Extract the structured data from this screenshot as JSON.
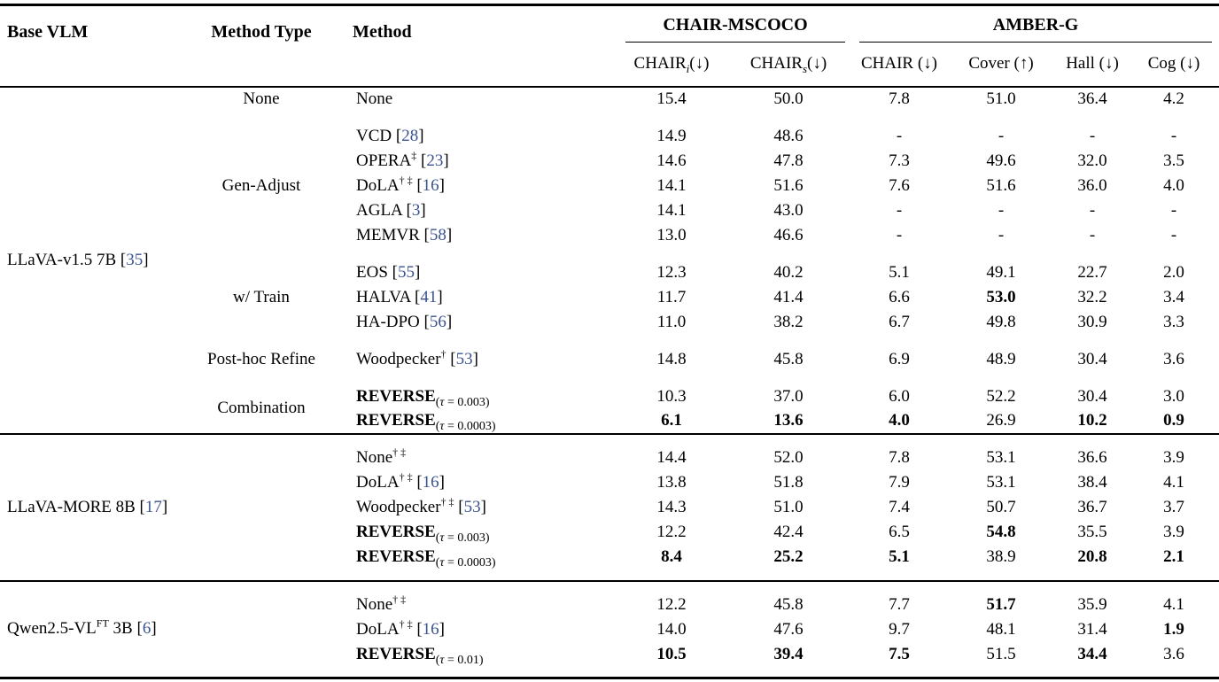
{
  "colors": {
    "citation": "#3A5390",
    "text": "#000000"
  },
  "symbols": {
    "tau": "τ",
    "dagger": "†",
    "ddagger": "‡"
  },
  "header": {
    "col1": "Base VLM",
    "col2": "Method Type",
    "col3": "Method",
    "groups": [
      {
        "label": "CHAIR-MSCOCO"
      },
      {
        "label": "AMBER-G"
      }
    ],
    "subcols": [
      {
        "base": "CHAIR",
        "sub": "i",
        "arrow": "(↓)"
      },
      {
        "base": "CHAIR",
        "sub": "s",
        "arrow": "(↓)"
      },
      {
        "base": "CHAIR",
        "sub": "",
        "arrow": "(↓)"
      },
      {
        "base": "Cover",
        "sub": "",
        "arrow": "(↑)"
      },
      {
        "base": "Hall",
        "sub": "",
        "arrow": "(↓)"
      },
      {
        "base": "Cog",
        "sub": "",
        "arrow": "(↓)"
      }
    ]
  },
  "sections": [
    {
      "padded": false,
      "base": {
        "pre": "LLaVA-v1.5 7B",
        "sup": "",
        "post": "",
        "cite": "35"
      },
      "groups": [
        {
          "label": "None",
          "rows": [
            {
              "method": {
                "name": "None",
                "sups": [],
                "cite": "",
                "tau": "",
                "bold": false
              },
              "values": [
                "15.4",
                "50.0",
                "7.8",
                "51.0",
                "36.4",
                "4.2"
              ],
              "bold": [
                false,
                false,
                false,
                false,
                false,
                false
              ]
            }
          ]
        },
        {
          "label": "Gen-Adjust",
          "rows": [
            {
              "method": {
                "name": "VCD",
                "sups": [],
                "cite": "28",
                "tau": "",
                "bold": false
              },
              "values": [
                "14.9",
                "48.6",
                "-",
                "-",
                "-",
                "-"
              ],
              "bold": [
                false,
                false,
                false,
                false,
                false,
                false
              ]
            },
            {
              "method": {
                "name": "OPERA",
                "sups": [
                  "‡"
                ],
                "cite": "23",
                "tau": "",
                "bold": false
              },
              "values": [
                "14.6",
                "47.8",
                "7.3",
                "49.6",
                "32.0",
                "3.5"
              ],
              "bold": [
                false,
                false,
                false,
                false,
                false,
                false
              ]
            },
            {
              "method": {
                "name": "DoLA",
                "sups": [
                  "†",
                  "‡"
                ],
                "cite": "16",
                "tau": "",
                "bold": false
              },
              "values": [
                "14.1",
                "51.6",
                "7.6",
                "51.6",
                "36.0",
                "4.0"
              ],
              "bold": [
                false,
                false,
                false,
                false,
                false,
                false
              ]
            },
            {
              "method": {
                "name": "AGLA",
                "sups": [],
                "cite": "3",
                "tau": "",
                "bold": false
              },
              "values": [
                "14.1",
                "43.0",
                "-",
                "-",
                "-",
                "-"
              ],
              "bold": [
                false,
                false,
                false,
                false,
                false,
                false
              ]
            },
            {
              "method": {
                "name": "MEMVR",
                "sups": [],
                "cite": "58",
                "tau": "",
                "bold": false
              },
              "values": [
                "13.0",
                "46.6",
                "-",
                "-",
                "-",
                "-"
              ],
              "bold": [
                false,
                false,
                false,
                false,
                false,
                false
              ]
            }
          ]
        },
        {
          "label": "w/ Train",
          "rows": [
            {
              "method": {
                "name": "EOS",
                "sups": [],
                "cite": "55",
                "tau": "",
                "bold": false
              },
              "values": [
                "12.3",
                "40.2",
                "5.1",
                "49.1",
                "22.7",
                "2.0"
              ],
              "bold": [
                false,
                false,
                false,
                false,
                false,
                false
              ]
            },
            {
              "method": {
                "name": "HALVA",
                "sups": [],
                "cite": "41",
                "tau": "",
                "bold": false
              },
              "values": [
                "11.7",
                "41.4",
                "6.6",
                "53.0",
                "32.2",
                "3.4"
              ],
              "bold": [
                false,
                false,
                false,
                true,
                false,
                false
              ]
            },
            {
              "method": {
                "name": "HA-DPO",
                "sups": [],
                "cite": "56",
                "tau": "",
                "bold": false
              },
              "values": [
                "11.0",
                "38.2",
                "6.7",
                "49.8",
                "30.9",
                "3.3"
              ],
              "bold": [
                false,
                false,
                false,
                false,
                false,
                false
              ]
            }
          ]
        },
        {
          "label": "Post-hoc Refine",
          "rows": [
            {
              "method": {
                "name": "Woodpecker",
                "sups": [
                  "†"
                ],
                "cite": "53",
                "tau": "",
                "bold": false
              },
              "values": [
                "14.8",
                "45.8",
                "6.9",
                "48.9",
                "30.4",
                "3.6"
              ],
              "bold": [
                false,
                false,
                false,
                false,
                false,
                false
              ]
            }
          ]
        },
        {
          "label": "Combination",
          "rows": [
            {
              "method": {
                "name": "REVERSE",
                "sups": [],
                "cite": "",
                "tau": "0.003",
                "bold": true
              },
              "values": [
                "10.3",
                "37.0",
                "6.0",
                "52.2",
                "30.4",
                "3.0"
              ],
              "bold": [
                false,
                false,
                false,
                false,
                false,
                false
              ]
            },
            {
              "method": {
                "name": "REVERSE",
                "sups": [],
                "cite": "",
                "tau": "0.0003",
                "bold": true
              },
              "values": [
                "6.1",
                "13.6",
                "4.0",
                "26.9",
                "10.2",
                "0.9"
              ],
              "bold": [
                true,
                true,
                true,
                false,
                true,
                true
              ]
            }
          ]
        }
      ]
    },
    {
      "padded": true,
      "base": {
        "pre": "LLaVA-MORE 8B",
        "sup": "",
        "post": "",
        "cite": "17"
      },
      "groups": [
        {
          "label": "",
          "rows": [
            {
              "method": {
                "name": "None",
                "sups": [
                  "†",
                  "‡"
                ],
                "cite": "",
                "tau": "",
                "bold": false
              },
              "values": [
                "14.4",
                "52.0",
                "7.8",
                "53.1",
                "36.6",
                "3.9"
              ],
              "bold": [
                false,
                false,
                false,
                false,
                false,
                false
              ]
            },
            {
              "method": {
                "name": "DoLA",
                "sups": [
                  "†",
                  "‡"
                ],
                "cite": "16",
                "tau": "",
                "bold": false
              },
              "values": [
                "13.8",
                "51.8",
                "7.9",
                "53.1",
                "38.4",
                "4.1"
              ],
              "bold": [
                false,
                false,
                false,
                false,
                false,
                false
              ]
            },
            {
              "method": {
                "name": "Woodpecker",
                "sups": [
                  "†",
                  "‡"
                ],
                "cite": "53",
                "tau": "",
                "bold": false
              },
              "values": [
                "14.3",
                "51.0",
                "7.4",
                "50.7",
                "36.7",
                "3.7"
              ],
              "bold": [
                false,
                false,
                false,
                false,
                false,
                false
              ]
            },
            {
              "method": {
                "name": "REVERSE",
                "sups": [],
                "cite": "",
                "tau": "0.003",
                "bold": true
              },
              "values": [
                "12.2",
                "42.4",
                "6.5",
                "54.8",
                "35.5",
                "3.9"
              ],
              "bold": [
                false,
                false,
                false,
                true,
                false,
                false
              ]
            },
            {
              "method": {
                "name": "REVERSE",
                "sups": [],
                "cite": "",
                "tau": "0.0003",
                "bold": true
              },
              "values": [
                "8.4",
                "25.2",
                "5.1",
                "38.9",
                "20.8",
                "2.1"
              ],
              "bold": [
                true,
                true,
                true,
                false,
                true,
                true
              ]
            }
          ]
        }
      ]
    },
    {
      "padded": true,
      "base": {
        "pre": "Qwen2.5-VL",
        "sup": "FT",
        "post": "3B",
        "cite": "6"
      },
      "groups": [
        {
          "label": "",
          "rows": [
            {
              "method": {
                "name": "None",
                "sups": [
                  "†",
                  "‡"
                ],
                "cite": "",
                "tau": "",
                "bold": false
              },
              "values": [
                "12.2",
                "45.8",
                "7.7",
                "51.7",
                "35.9",
                "4.1"
              ],
              "bold": [
                false,
                false,
                false,
                true,
                false,
                false
              ]
            },
            {
              "method": {
                "name": "DoLA",
                "sups": [
                  "†",
                  "‡"
                ],
                "cite": "16",
                "tau": "",
                "bold": false
              },
              "values": [
                "14.0",
                "47.6",
                "9.7",
                "48.1",
                "31.4",
                "1.9"
              ],
              "bold": [
                false,
                false,
                false,
                false,
                false,
                true
              ]
            },
            {
              "method": {
                "name": "REVERSE",
                "sups": [],
                "cite": "",
                "tau": "0.01",
                "bold": true
              },
              "values": [
                "10.5",
                "39.4",
                "7.5",
                "51.5",
                "34.4",
                "3.6"
              ],
              "bold": [
                true,
                true,
                true,
                false,
                true,
                false
              ]
            }
          ]
        }
      ]
    }
  ]
}
